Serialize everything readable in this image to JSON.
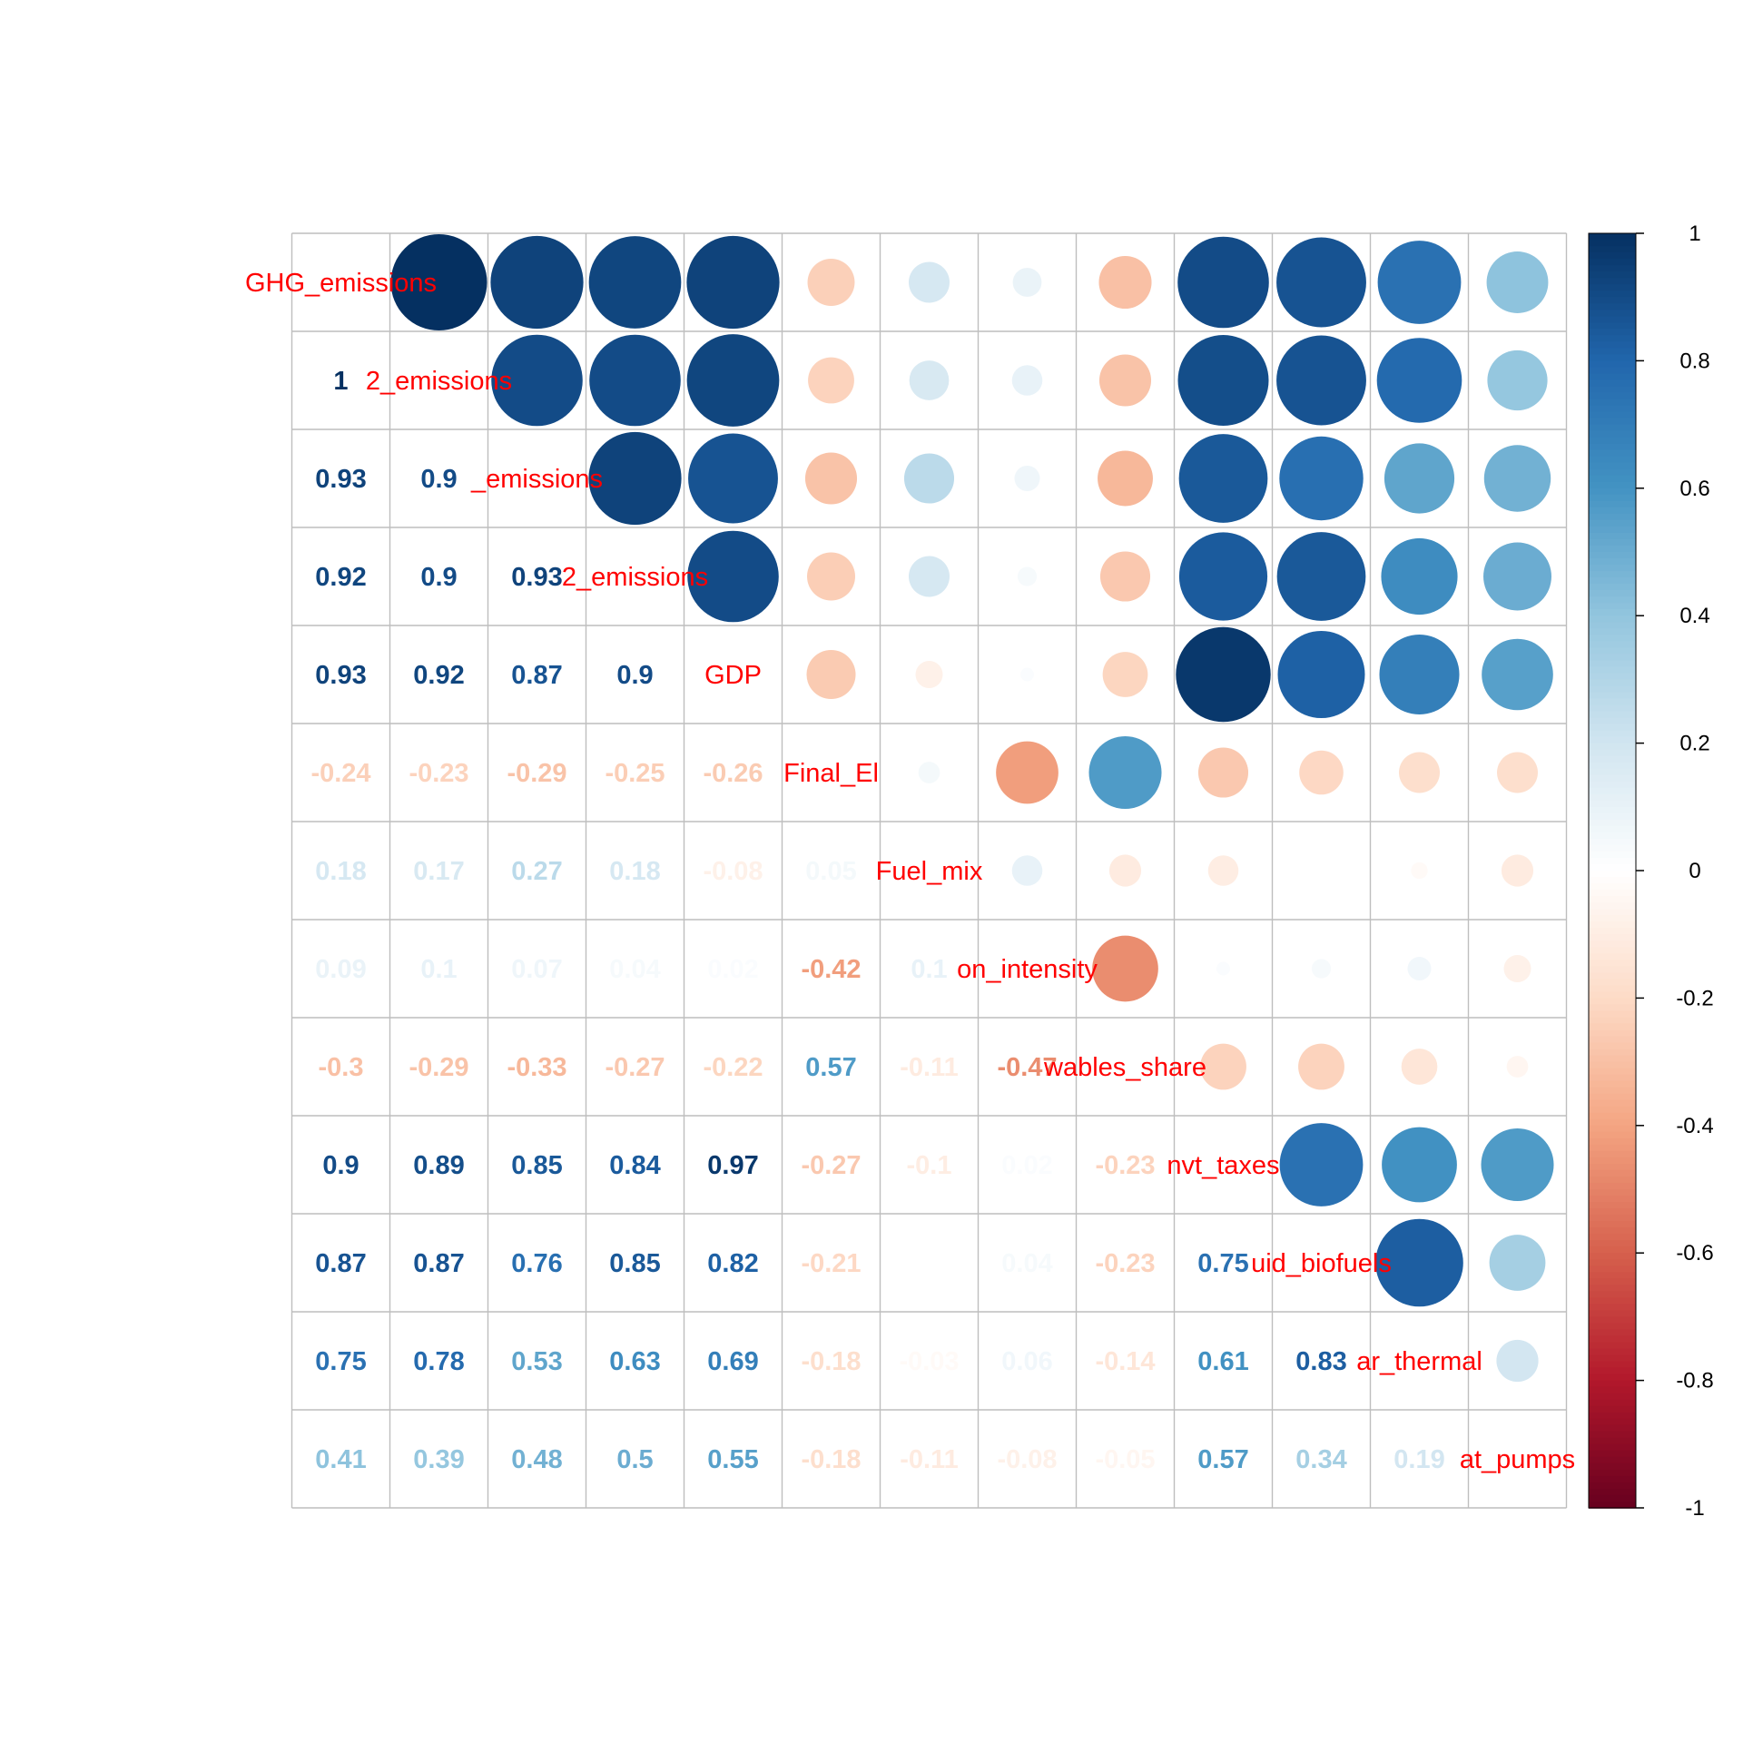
{
  "chart_data": {
    "type": "heatmap",
    "title": "",
    "method": "mixed: circle (upper), number (lower)",
    "variables_shown": [
      "GHG_emissions",
      "2_emissions",
      "_emissions",
      "2_emissions",
      "GDP",
      "Final_El",
      "Fuel_mix",
      "on_intensity",
      "wables_share",
      "nvt_taxes",
      "uid_biofuels",
      "ar_thermal",
      "at_pumps"
    ],
    "matrix": [
      [
        1,
        1,
        0.93,
        0.92,
        0.93,
        -0.24,
        0.18,
        0.09,
        -0.3,
        0.9,
        0.87,
        0.75,
        0.41
      ],
      [
        1,
        1,
        0.9,
        0.9,
        0.92,
        -0.23,
        0.17,
        0.1,
        -0.29,
        0.89,
        0.87,
        0.78,
        0.39
      ],
      [
        0.93,
        0.9,
        1,
        0.93,
        0.87,
        -0.29,
        0.27,
        0.07,
        -0.33,
        0.85,
        0.76,
        0.53,
        0.48
      ],
      [
        0.92,
        0.9,
        0.93,
        1,
        0.9,
        -0.25,
        0.18,
        0.04,
        -0.27,
        0.84,
        0.85,
        0.63,
        0.5
      ],
      [
        0.93,
        0.92,
        0.87,
        0.9,
        1,
        -0.26,
        -0.08,
        0.02,
        -0.22,
        0.97,
        0.82,
        0.69,
        0.55
      ],
      [
        -0.24,
        -0.23,
        -0.29,
        -0.25,
        -0.26,
        1,
        0.05,
        -0.42,
        0.57,
        -0.27,
        -0.21,
        -0.18,
        -0.18
      ],
      [
        0.18,
        0.17,
        0.27,
        0.18,
        -0.08,
        0.05,
        1,
        0.1,
        -0.11,
        -0.1,
        0,
        -0.03,
        -0.11
      ],
      [
        0.09,
        0.1,
        0.07,
        0.04,
        0.02,
        -0.42,
        0.1,
        1,
        -0.47,
        0.02,
        0.04,
        0.06,
        -0.08
      ],
      [
        -0.3,
        -0.29,
        -0.33,
        -0.27,
        -0.22,
        0.57,
        -0.11,
        -0.47,
        1,
        -0.23,
        -0.23,
        -0.14,
        -0.05
      ],
      [
        0.9,
        0.89,
        0.85,
        0.84,
        0.97,
        -0.27,
        -0.1,
        0.02,
        -0.23,
        1,
        0.75,
        0.61,
        0.57
      ],
      [
        0.87,
        0.87,
        0.76,
        0.85,
        0.82,
        -0.21,
        0,
        0.04,
        -0.23,
        0.75,
        1,
        0.83,
        0.34
      ],
      [
        0.75,
        0.78,
        0.53,
        0.63,
        0.69,
        -0.18,
        -0.03,
        0.06,
        -0.14,
        0.61,
        0.83,
        1,
        0.19
      ],
      [
        0.41,
        0.39,
        0.48,
        0.5,
        0.55,
        -0.18,
        -0.11,
        -0.08,
        -0.05,
        0.57,
        0.34,
        0.19,
        1
      ]
    ],
    "colorbar": {
      "range": [
        -1,
        1
      ],
      "ticks": [
        "1",
        "0.8",
        "0.6",
        "0.4",
        "0.2",
        "0",
        "-0.2",
        "-0.4",
        "-0.6",
        "-0.8",
        "-1"
      ]
    },
    "colors": {
      "label": "#ff0000",
      "grid": "#bebebe",
      "scale": [
        "#67001f",
        "#b2182b",
        "#d6604d",
        "#f4a582",
        "#fddbc7",
        "#ffffff",
        "#d1e5f0",
        "#92c5de",
        "#4393c3",
        "#2166ac",
        "#053061"
      ]
    }
  }
}
